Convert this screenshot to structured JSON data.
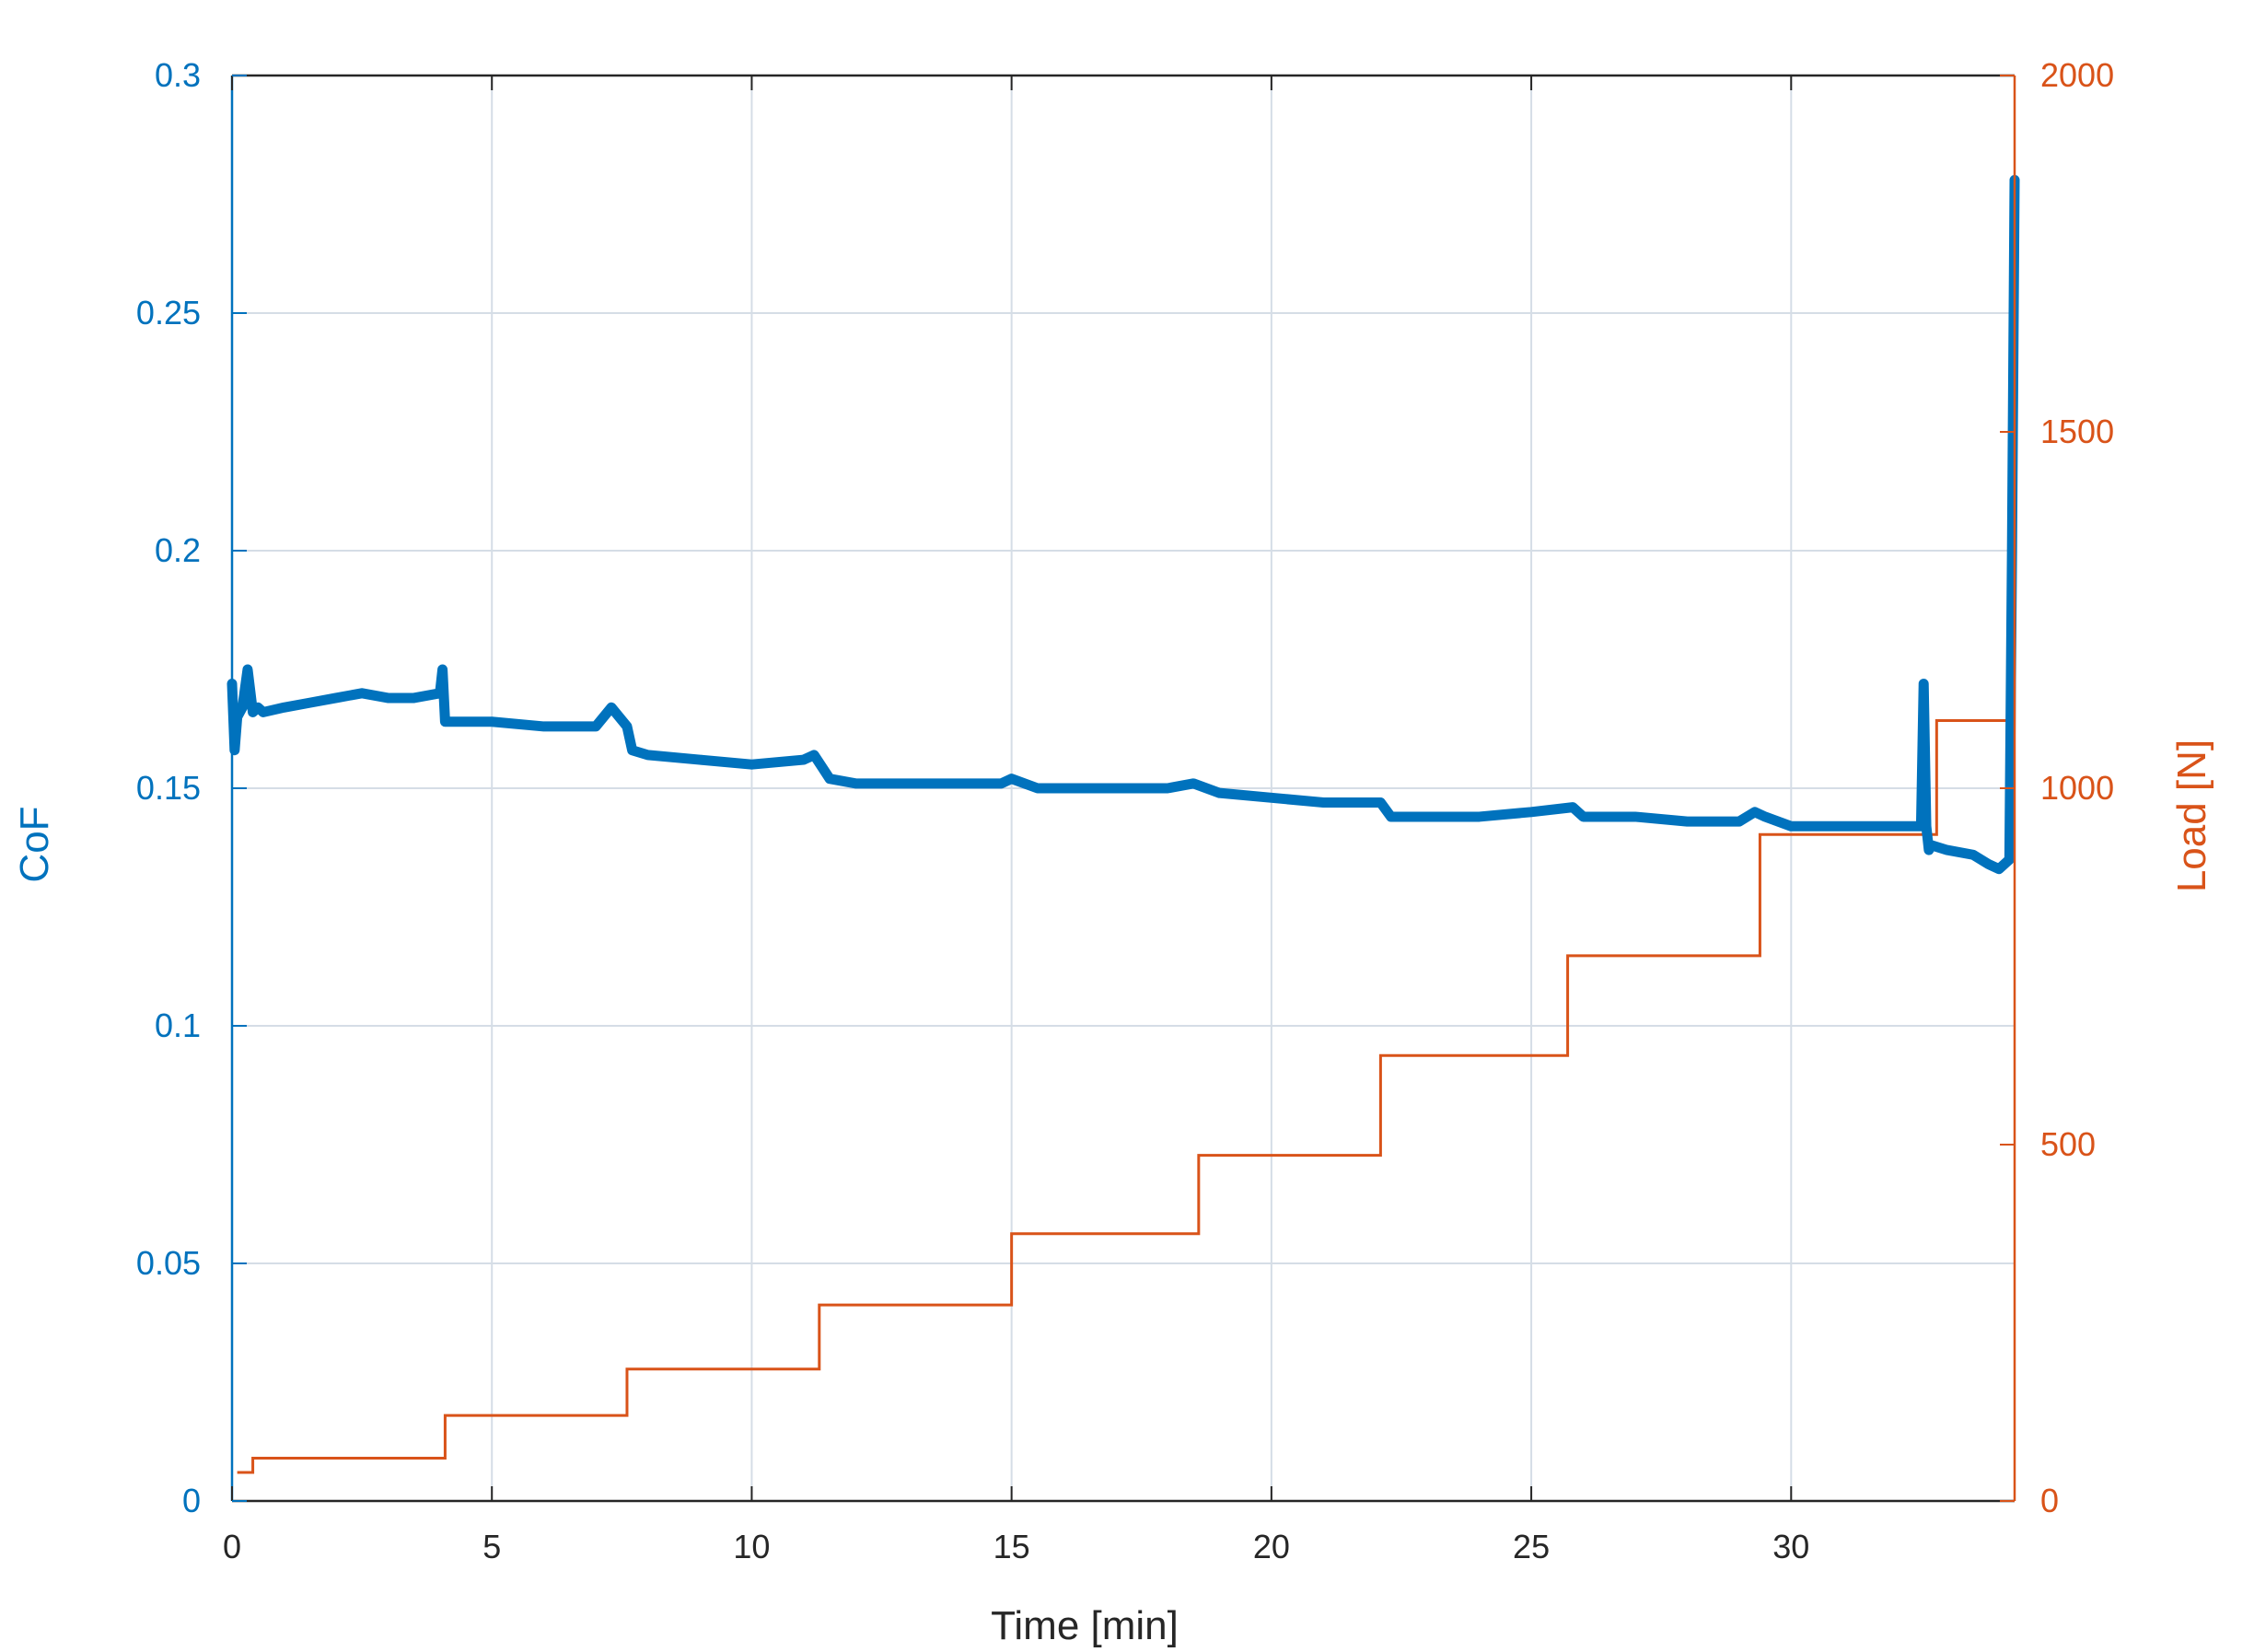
{
  "chart_data": {
    "type": "line",
    "xlabel": "Time [min]",
    "ylabel_left": "CoF",
    "ylabel_right": "Load [N]",
    "xlim": [
      0,
      34.3
    ],
    "ylim_left": [
      0,
      0.3
    ],
    "ylim_right": [
      0,
      2000
    ],
    "x_ticks": [
      "0",
      "5",
      "10",
      "15",
      "20",
      "25",
      "30"
    ],
    "y_left_ticks": [
      "0",
      "0.05",
      "0.1",
      "0.15",
      "0.2",
      "0.25",
      "0.3"
    ],
    "y_right_ticks": [
      "0",
      "500",
      "1000",
      "1500",
      "2000"
    ],
    "grid": true,
    "colors": {
      "cof": "#0072BD",
      "load": "#D95319",
      "grid": "#d5dde6",
      "axis": "#262626"
    },
    "series": [
      {
        "axis": "left",
        "x": [
          0,
          0.05,
          0.1,
          0.2,
          0.3,
          0.4,
          0.5,
          0.6,
          1.0,
          1.5,
          2.0,
          2.5,
          3.0,
          3.5,
          4.0,
          4.05,
          4.1,
          4.2,
          5.0,
          6.0,
          7.0,
          7.3,
          7.6,
          7.7,
          8.0,
          9.0,
          10.0,
          11.0,
          11.2,
          11.5,
          12.0,
          13.0,
          14.0,
          14.8,
          15.0,
          15.5,
          16.0,
          17.0,
          18.0,
          18.5,
          19.0,
          20.0,
          21.0,
          22.0,
          22.1,
          22.3,
          23.0,
          24.0,
          25.0,
          25.8,
          26.0,
          27.0,
          28.0,
          29.0,
          29.3,
          29.5,
          30.0,
          31.0,
          32.0,
          32.5,
          32.55,
          32.6,
          32.65,
          32.7,
          33.0,
          33.5,
          33.8,
          34.0,
          34.2,
          34.25,
          34.3
        ],
        "y": [
          0.172,
          0.158,
          0.165,
          0.167,
          0.175,
          0.166,
          0.167,
          0.166,
          0.167,
          0.168,
          0.169,
          0.17,
          0.169,
          0.169,
          0.17,
          0.175,
          0.164,
          0.164,
          0.164,
          0.163,
          0.163,
          0.167,
          0.163,
          0.158,
          0.157,
          0.156,
          0.155,
          0.156,
          0.157,
          0.152,
          0.151,
          0.151,
          0.151,
          0.151,
          0.152,
          0.15,
          0.15,
          0.15,
          0.15,
          0.151,
          0.149,
          0.148,
          0.147,
          0.147,
          0.147,
          0.144,
          0.144,
          0.144,
          0.145,
          0.146,
          0.144,
          0.144,
          0.143,
          0.143,
          0.145,
          0.144,
          0.142,
          0.142,
          0.142,
          0.142,
          0.172,
          0.142,
          0.137,
          0.138,
          0.137,
          0.136,
          0.134,
          0.133,
          0.135,
          0.2,
          0.278
        ]
      },
      {
        "axis": "right",
        "step": true,
        "x": [
          0.1,
          0.4,
          4.1,
          7.6,
          11.3,
          15.0,
          18.6,
          22.1,
          25.7,
          29.4,
          32.8,
          34.3
        ],
        "y": [
          40,
          60,
          120,
          185,
          275,
          375,
          485,
          625,
          765,
          935,
          1095,
          1095
        ]
      }
    ]
  }
}
